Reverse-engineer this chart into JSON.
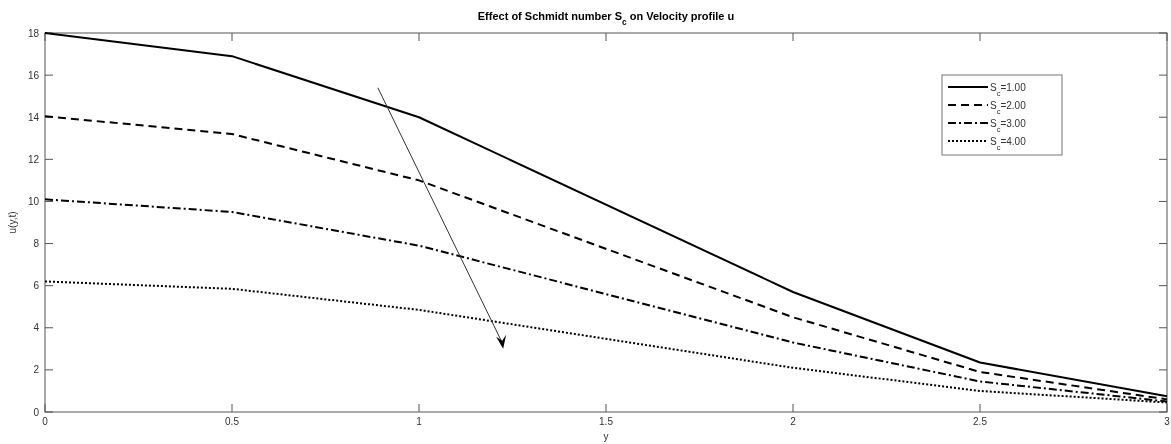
{
  "chart_data": {
    "type": "line",
    "title": "Effect of Schmidt number S$_{c}$ on Velocity profile u",
    "xlabel": "y",
    "ylabel": "u(y,t)",
    "x": [
      0,
      0.5,
      1,
      2,
      2.5,
      3
    ],
    "series": [
      {
        "name": "S$_{c}$=1.00",
        "color": "#000000",
        "line_style": "solid",
        "values": [
          18,
          16.9,
          14,
          5.7,
          2.35,
          0.75
        ]
      },
      {
        "name": "S$_{c}$=2.00",
        "color": "#000000",
        "line_style": "dashed",
        "values": [
          14.05,
          13.2,
          11,
          4.5,
          1.9,
          0.6
        ]
      },
      {
        "name": "S$_{c}$=3.00",
        "color": "#000000",
        "line_style": "dashdot",
        "values": [
          10.1,
          9.5,
          7.9,
          3.3,
          1.45,
          0.5
        ]
      },
      {
        "name": "S$_{c}$=4.00",
        "color": "#000000",
        "line_style": "dotted",
        "values": [
          6.2,
          5.85,
          4.85,
          2.1,
          1.0,
          0.45
        ]
      }
    ],
    "xlim": [
      0,
      3
    ],
    "xticks": [
      0,
      0.5,
      1,
      1.5,
      2,
      2.5,
      3
    ],
    "ylim": [
      0,
      18
    ],
    "yticks": [
      0,
      2,
      4,
      6,
      8,
      10,
      12,
      14,
      16,
      18
    ],
    "grid": false,
    "legend": "top right",
    "marker": "none"
  }
}
